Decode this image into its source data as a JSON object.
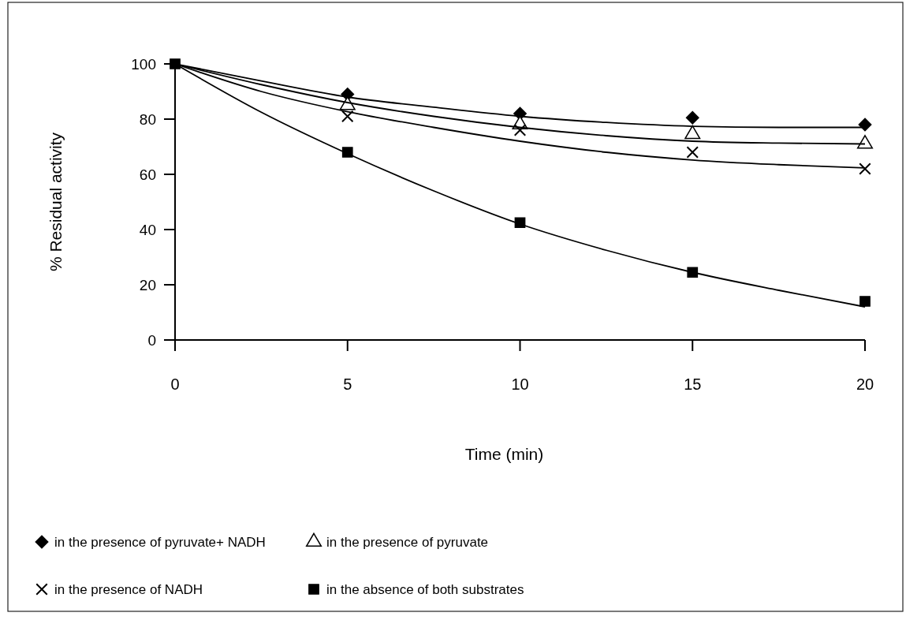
{
  "chart_data": {
    "type": "scatter",
    "xlabel": "Time (min)",
    "ylabel": "% Residual activity",
    "xlim": [
      0,
      20
    ],
    "xticks": [
      0,
      5,
      10,
      15,
      20
    ],
    "ylim": [
      0,
      100
    ],
    "yticks": [
      0,
      20,
      40,
      60,
      80,
      100
    ],
    "grid": false,
    "legend": "bottom",
    "series": [
      {
        "name": "in the presence of pyruvate+ NADH",
        "color": "#000000",
        "marker": "diamond",
        "x": [
          5,
          10,
          15,
          20
        ],
        "values": [
          89,
          82,
          80.5,
          78
        ]
      },
      {
        "name": "in the presence of pyruvate",
        "color": "#000000",
        "marker": "triangle",
        "x": [
          5,
          10,
          15,
          20
        ],
        "values": [
          85,
          78,
          74.5,
          71
        ]
      },
      {
        "name": "in the presence of NADH",
        "color": "#000000",
        "marker": "cross",
        "x": [
          5,
          10,
          15,
          20
        ],
        "values": [
          81,
          76,
          68,
          62
        ]
      },
      {
        "name": "in the absence of both substrates",
        "color": "#000000",
        "marker": "square",
        "x": [
          0,
          5,
          10,
          15,
          20
        ],
        "values": [
          100,
          68,
          42.5,
          24.5,
          14
        ]
      },
      {
        "type": "line",
        "color": "#000000",
        "marker": "none",
        "x": [
          0,
          2.5,
          5,
          7.5,
          10,
          12.5,
          15,
          17.5,
          20
        ],
        "values": [
          100,
          93.8,
          88,
          84.3,
          81,
          78.8,
          77.4,
          77,
          77
        ]
      },
      {
        "type": "line",
        "color": "#000000",
        "marker": "none",
        "x": [
          0,
          2.5,
          5,
          7.5,
          10,
          12.5,
          15,
          17.5,
          20
        ],
        "values": [
          100,
          92.5,
          86,
          81,
          77,
          74,
          72,
          71.3,
          71
        ]
      },
      {
        "type": "line",
        "color": "#000000",
        "marker": "none",
        "x": [
          0,
          2.5,
          5,
          7.5,
          10,
          12.5,
          15,
          17.5,
          20
        ],
        "values": [
          100,
          90,
          82.7,
          77,
          72,
          68,
          65.2,
          63.5,
          62.3
        ]
      },
      {
        "type": "line",
        "color": "#000000",
        "marker": "none",
        "x": [
          0,
          2.5,
          5,
          7.5,
          10,
          12.5,
          15,
          17.5,
          20
        ],
        "values": [
          100,
          82.5,
          67.5,
          54,
          42,
          32.5,
          24.5,
          18,
          12
        ]
      }
    ]
  }
}
